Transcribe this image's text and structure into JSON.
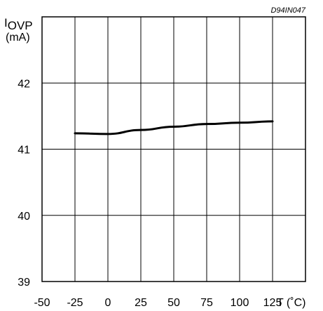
{
  "chart_data": {
    "type": "line",
    "code": "D94IN047",
    "ylabel_main": "I",
    "ylabel_sub": "OVP",
    "ylabel_unit": "(mA)",
    "xlabel": "T (˚C)",
    "x_ticks": [
      -50,
      -25,
      0,
      25,
      50,
      75,
      100,
      125
    ],
    "x_tick_labels": [
      "-50",
      "-25",
      "0",
      "25",
      "50",
      "75",
      "100",
      "125"
    ],
    "y_ticks": [
      39,
      40,
      41,
      42
    ],
    "y_tick_labels": [
      "39",
      "40",
      "41",
      "42"
    ],
    "xlim": [
      -50,
      150
    ],
    "ylim": [
      39,
      43
    ],
    "grid": true,
    "series": [
      {
        "x": [
          -25,
          0,
          25,
          50,
          75,
          100,
          125
        ],
        "y": [
          41.24,
          41.23,
          41.29,
          41.34,
          41.38,
          41.4,
          41.42
        ]
      }
    ],
    "colors": {
      "line": "#000000",
      "grid": "#000000"
    }
  }
}
